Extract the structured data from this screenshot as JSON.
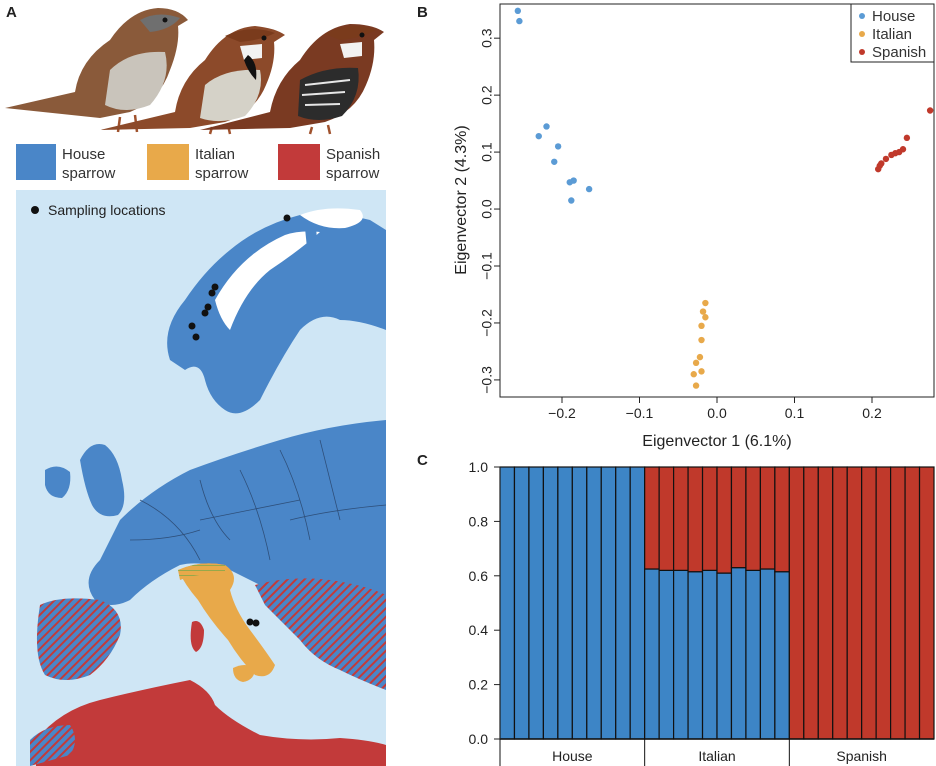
{
  "panels": {
    "a": "A",
    "b": "B",
    "c": "C"
  },
  "colors": {
    "house": "#3d85c6",
    "house_map": "#4a86c8",
    "italian": "#e8a94a",
    "spanish": "#c0392b",
    "spanish_map": "#c23a3a",
    "sea": "#cfe6f5",
    "bird_body": "#8a5a3a"
  },
  "species_legend": [
    {
      "line1": "House",
      "line2": "sparrow",
      "key": "house"
    },
    {
      "line1": "Italian",
      "line2": "sparrow",
      "key": "italian"
    },
    {
      "line1": "Spanish",
      "line2": "sparrow",
      "key": "spanish"
    }
  ],
  "map": {
    "sampling_label": "Sampling locations"
  },
  "chart_data": [
    {
      "type": "scatter",
      "xlabel": "Eigenvector 1 (6.1%)",
      "ylabel": "Eigenvector 2 (4.3%)",
      "xlim": [
        -0.28,
        0.28
      ],
      "ylim": [
        -0.33,
        0.36
      ],
      "xticks": [
        -0.2,
        -0.1,
        0.0,
        0.1,
        0.2
      ],
      "xtick_labels": [
        "−0.2",
        "−0.1",
        "0.0",
        "0.1",
        "0.2"
      ],
      "yticks": [
        -0.3,
        -0.2,
        -0.1,
        0.0,
        0.1,
        0.2,
        0.3
      ],
      "ytick_labels": [
        "−0.3",
        "−0.2",
        "−0.1",
        "0.0",
        "0.1",
        "0.2",
        "0.3"
      ],
      "legend_position": "top-right",
      "series": [
        {
          "name": "House",
          "color": "#5b9bd5",
          "points": [
            [
              -0.257,
              0.348
            ],
            [
              -0.255,
              0.33
            ],
            [
              -0.23,
              0.128
            ],
            [
              -0.22,
              0.145
            ],
            [
              -0.21,
              0.083
            ],
            [
              -0.205,
              0.11
            ],
            [
              -0.19,
              0.047
            ],
            [
              -0.188,
              0.015
            ],
            [
              -0.185,
              0.05
            ],
            [
              -0.165,
              0.035
            ]
          ]
        },
        {
          "name": "Italian",
          "color": "#e8a94a",
          "points": [
            [
              -0.015,
              -0.165
            ],
            [
              -0.018,
              -0.18
            ],
            [
              -0.02,
              -0.205
            ],
            [
              -0.015,
              -0.19
            ],
            [
              -0.02,
              -0.23
            ],
            [
              -0.022,
              -0.26
            ],
            [
              -0.027,
              -0.27
            ],
            [
              -0.02,
              -0.285
            ],
            [
              -0.03,
              -0.29
            ],
            [
              -0.027,
              -0.31
            ]
          ]
        },
        {
          "name": "Spanish",
          "color": "#c0392b",
          "points": [
            [
              0.275,
              0.173
            ],
            [
              0.245,
              0.125
            ],
            [
              0.24,
              0.105
            ],
            [
              0.235,
              0.1
            ],
            [
              0.23,
              0.098
            ],
            [
              0.225,
              0.095
            ],
            [
              0.218,
              0.088
            ],
            [
              0.212,
              0.08
            ],
            [
              0.21,
              0.076
            ],
            [
              0.208,
              0.07
            ]
          ]
        }
      ]
    },
    {
      "type": "bar",
      "stacked": true,
      "ylim": [
        0,
        1
      ],
      "yticks": [
        0.0,
        0.2,
        0.4,
        0.6,
        0.8,
        1.0
      ],
      "ytick_labels": [
        "0.0",
        "0.2",
        "0.4",
        "0.6",
        "0.8",
        "1.0"
      ],
      "groups": [
        "House",
        "Italian",
        "Spanish"
      ],
      "group_sizes": [
        10,
        10,
        10
      ],
      "series": [
        {
          "color": "#3d85c6",
          "values": [
            1,
            1,
            1,
            1,
            1,
            1,
            1,
            1,
            1,
            1,
            0.625,
            0.62,
            0.62,
            0.615,
            0.62,
            0.61,
            0.63,
            0.62,
            0.625,
            0.615,
            0,
            0,
            0,
            0,
            0,
            0,
            0,
            0,
            0,
            0
          ]
        },
        {
          "color": "#c0392b",
          "values": [
            0,
            0,
            0,
            0,
            0,
            0,
            0,
            0,
            0,
            0,
            0.375,
            0.38,
            0.38,
            0.385,
            0.38,
            0.39,
            0.37,
            0.38,
            0.375,
            0.385,
            1,
            1,
            1,
            1,
            1,
            1,
            1,
            1,
            1,
            1
          ]
        }
      ]
    }
  ]
}
